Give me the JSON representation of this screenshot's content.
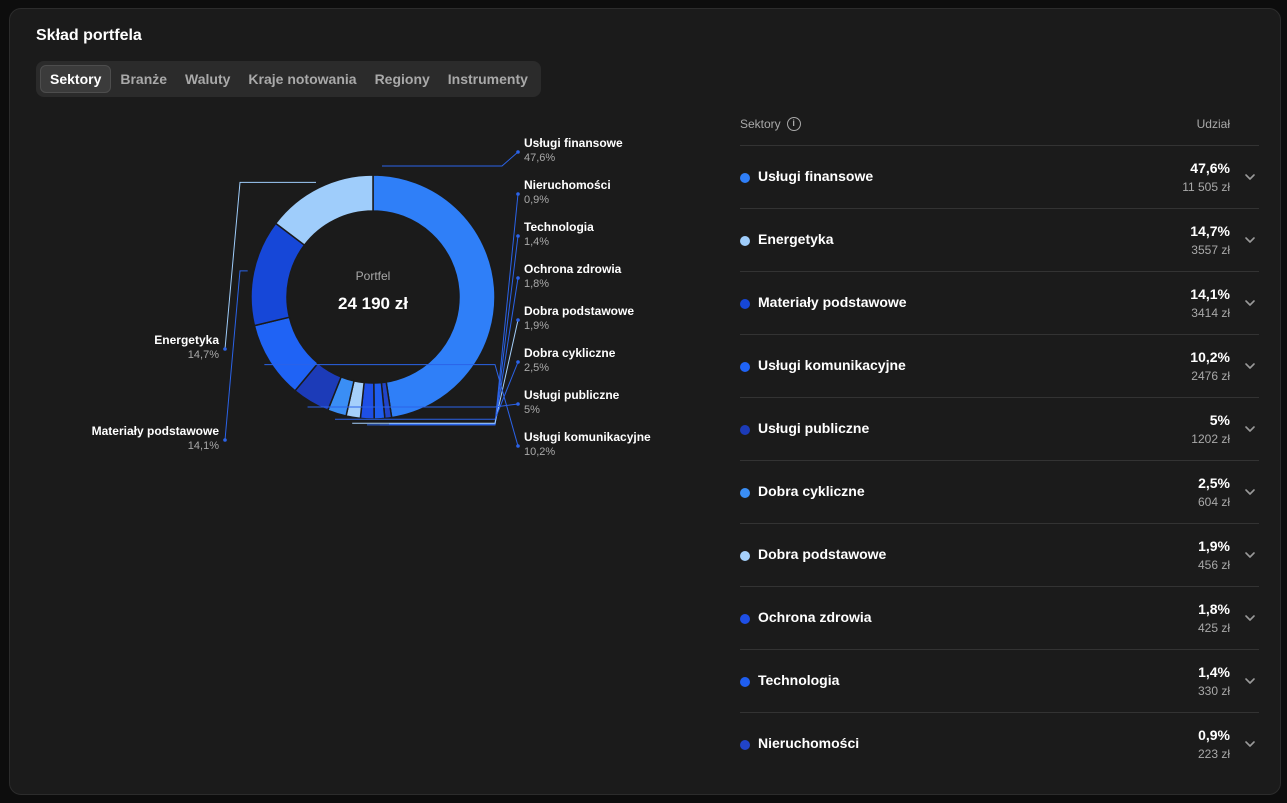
{
  "title": "Skład portfela",
  "tabs": [
    {
      "label": "Sektory",
      "active": true
    },
    {
      "label": "Branże",
      "active": false
    },
    {
      "label": "Waluty",
      "active": false
    },
    {
      "label": "Kraje notowania",
      "active": false
    },
    {
      "label": "Regiony",
      "active": false
    },
    {
      "label": "Instrumenty",
      "active": false
    }
  ],
  "chart_data": {
    "type": "pie",
    "center_label": "Portfel",
    "center_value": "24 190 zł",
    "slices": [
      {
        "name": "Usługi finansowe",
        "pct_label": "47,6%",
        "value": 47.6,
        "color": "#2f7ff8"
      },
      {
        "name": "Nieruchomości",
        "pct_label": "0,9%",
        "value": 0.9,
        "color": "#2144c8"
      },
      {
        "name": "Technologia",
        "pct_label": "1,4%",
        "value": 1.4,
        "color": "#1f5ef0"
      },
      {
        "name": "Ochrona zdrowia",
        "pct_label": "1,8%",
        "value": 1.8,
        "color": "#1e4fe6"
      },
      {
        "name": "Dobra podstawowe",
        "pct_label": "1,9%",
        "value": 1.9,
        "color": "#a5d0fb"
      },
      {
        "name": "Dobra cykliczne",
        "pct_label": "2,5%",
        "value": 2.5,
        "color": "#3a8ef5"
      },
      {
        "name": "Usługi publiczne",
        "pct_label": "5%",
        "value": 5,
        "color": "#1c3bb8"
      },
      {
        "name": "Usługi komunikacyjne",
        "pct_label": "10,2%",
        "value": 10.2,
        "color": "#1f63f5"
      },
      {
        "name": "Materiały podstawowe",
        "pct_label": "14,1%",
        "value": 14.1,
        "color": "#1647d8"
      },
      {
        "name": "Energetyka",
        "pct_label": "14,7%",
        "value": 14.7,
        "color": "#9fcdfb"
      }
    ]
  },
  "table": {
    "header_left": "Sektory",
    "header_right": "Udział",
    "rows": [
      {
        "label": "Usługi finansowe",
        "pct": "47,6%",
        "amount": "11 505 zł",
        "color": "#2f7ff8"
      },
      {
        "label": "Energetyka",
        "pct": "14,7%",
        "amount": "3557 zł",
        "color": "#9fcdfb"
      },
      {
        "label": "Materiały podstawowe",
        "pct": "14,1%",
        "amount": "3414 zł",
        "color": "#1647d8"
      },
      {
        "label": "Usługi komunikacyjne",
        "pct": "10,2%",
        "amount": "2476 zł",
        "color": "#1f63f5"
      },
      {
        "label": "Usługi publiczne",
        "pct": "5%",
        "amount": "1202 zł",
        "color": "#1c3bb8"
      },
      {
        "label": "Dobra cykliczne",
        "pct": "2,5%",
        "amount": "604 zł",
        "color": "#3a8ef5"
      },
      {
        "label": "Dobra podstawowe",
        "pct": "1,9%",
        "amount": "456 zł",
        "color": "#a5d0fb"
      },
      {
        "label": "Ochrona zdrowia",
        "pct": "1,8%",
        "amount": "425 zł",
        "color": "#1e4fe6"
      },
      {
        "label": "Technologia",
        "pct": "1,4%",
        "amount": "330 zł",
        "color": "#1f5ef0"
      },
      {
        "label": "Nieruchomości",
        "pct": "0,9%",
        "amount": "223 zł",
        "color": "#2144c8"
      }
    ]
  }
}
